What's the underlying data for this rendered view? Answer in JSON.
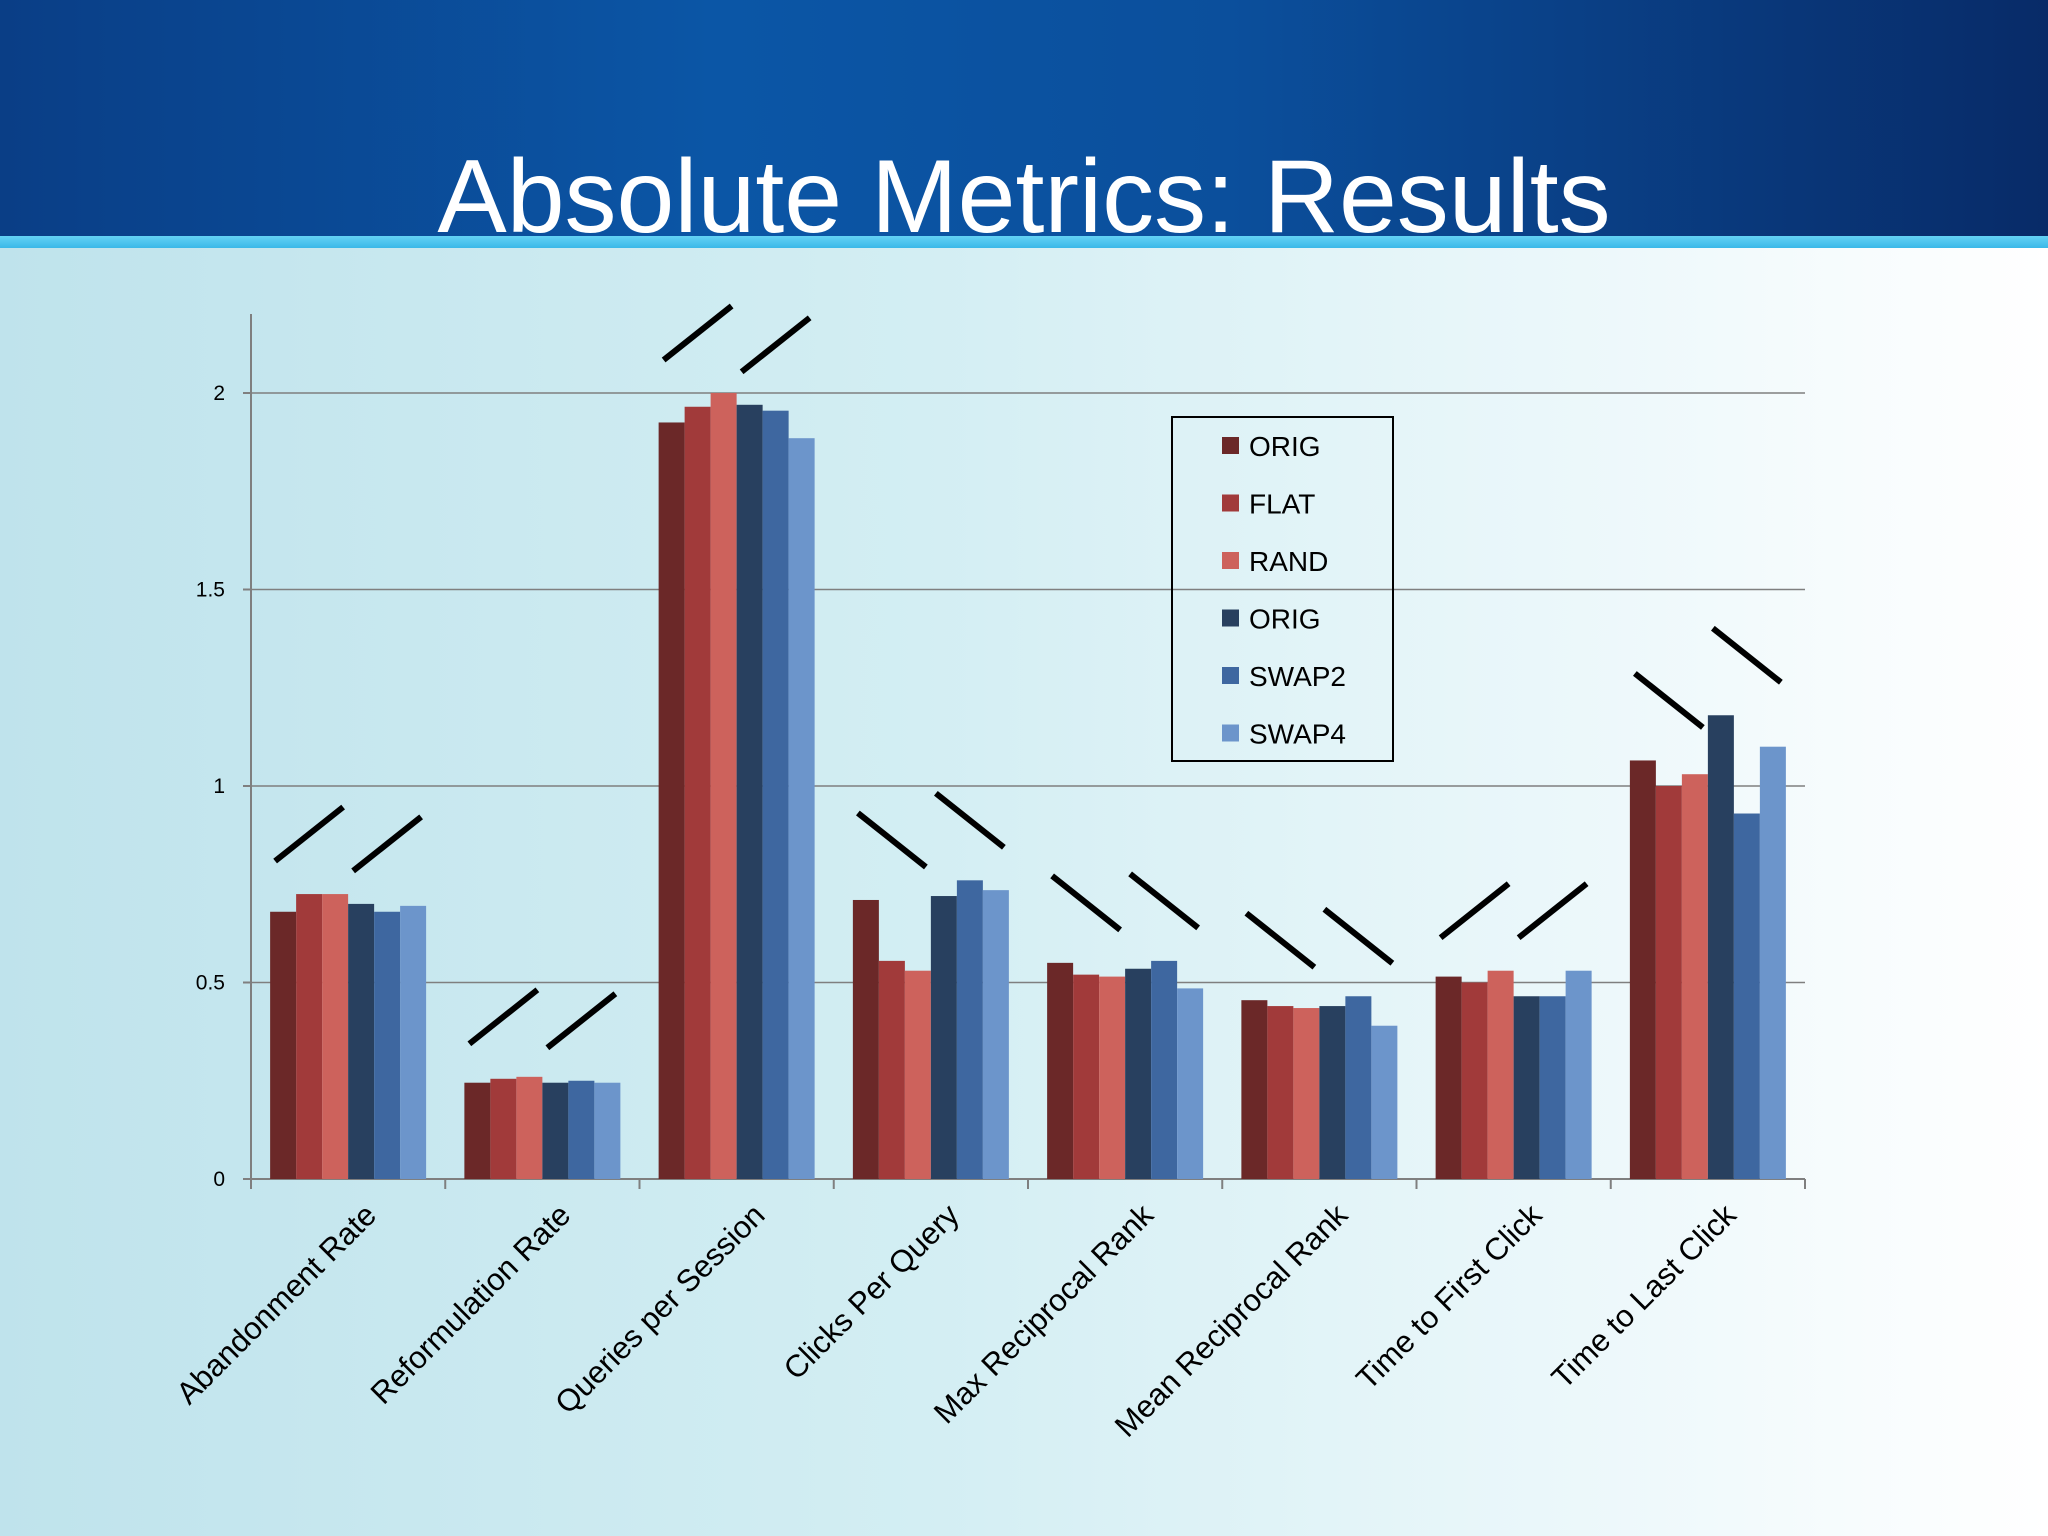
{
  "slide": {
    "title": "Absolute Metrics: Results"
  },
  "colors": {
    "ORIG_1": "#6b2828",
    "FLAT": "#a13a3a",
    "RAND": "#cd625c",
    "ORIG_2": "#28405f",
    "SWAP2": "#3e67a0",
    "SWAP4": "#6c95cb"
  },
  "chart_data": {
    "type": "bar",
    "categories": [
      "Abandonment Rate",
      "Reformulation Rate",
      "Queries per Session",
      "Clicks Per Query",
      "Max Reciprocal Rank",
      "Mean Reciprocal Rank",
      "Time to First Click",
      "Time to Last Click"
    ],
    "series": [
      {
        "name": "ORIG",
        "color": "#6b2828",
        "values": [
          0.68,
          0.245,
          1.925,
          0.71,
          0.55,
          0.455,
          0.515,
          1.065
        ]
      },
      {
        "name": "FLAT",
        "color": "#a13a3a",
        "values": [
          0.725,
          0.255,
          1.965,
          0.555,
          0.52,
          0.44,
          0.5,
          1.0
        ]
      },
      {
        "name": "RAND",
        "color": "#cd625c",
        "values": [
          0.725,
          0.26,
          2.0,
          0.53,
          0.515,
          0.435,
          0.53,
          1.03
        ]
      },
      {
        "name": "ORIG",
        "color": "#28405f",
        "values": [
          0.7,
          0.245,
          1.97,
          0.72,
          0.535,
          0.44,
          0.465,
          1.18
        ]
      },
      {
        "name": "SWAP2",
        "color": "#3e67a0",
        "values": [
          0.68,
          0.25,
          1.955,
          0.76,
          0.555,
          0.465,
          0.465,
          0.93
        ]
      },
      {
        "name": "SWAP4",
        "color": "#6c95cb",
        "values": [
          0.695,
          0.245,
          1.885,
          0.735,
          0.485,
          0.39,
          0.53,
          1.1
        ]
      }
    ],
    "trend_marks": [
      "up",
      "up",
      "up",
      "down",
      "down",
      "down",
      "up",
      "down"
    ],
    "ylim": [
      0,
      2.2
    ],
    "yticks": [
      "0",
      "0.5",
      "1",
      "1.5",
      "2"
    ],
    "ytick_values": [
      0,
      0.5,
      1,
      1.5,
      2
    ],
    "grid": true,
    "legend": "inside-center-right",
    "xlabel": "",
    "ylabel": "",
    "title": ""
  }
}
